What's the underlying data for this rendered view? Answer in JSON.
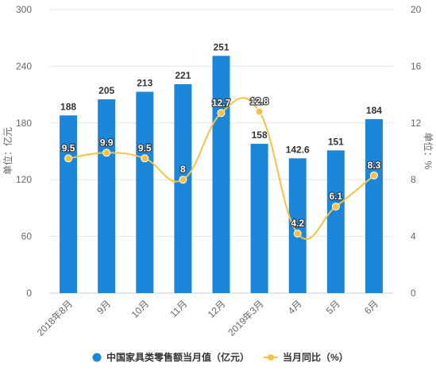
{
  "chart_data": {
    "type": "bar",
    "categories": [
      "2018年8月",
      "9月",
      "10月",
      "11月",
      "12月",
      "2019年3月",
      "4月",
      "5月",
      "6月"
    ],
    "series": [
      {
        "name": "中国家具类零售额当月值（亿元）",
        "type": "bar",
        "axis": "left",
        "values": [
          188,
          205,
          213,
          221,
          251,
          158,
          142.6,
          151,
          184
        ],
        "labels": [
          "188",
          "205",
          "213",
          "221",
          "251",
          "158",
          "142.6",
          "151",
          "184"
        ]
      },
      {
        "name": "当月同比（%）",
        "type": "line",
        "axis": "right",
        "values": [
          9.5,
          9.9,
          9.5,
          8,
          12.7,
          12.8,
          4.2,
          6.1,
          8.3
        ],
        "labels": [
          "9.5",
          "9.9",
          "9.5",
          "8",
          "12.7",
          "12.8",
          "4.2",
          "6.1",
          "8.3"
        ]
      }
    ],
    "ylabel_left": "单位：亿元",
    "ylabel_right": "单位：%",
    "ylim_left": [
      0,
      300
    ],
    "ylim_right": [
      0,
      20
    ],
    "yticks_left": [
      "0",
      "60",
      "120",
      "180",
      "240",
      "300"
    ],
    "yticks_right": [
      "0",
      "4",
      "8",
      "12",
      "16",
      "20"
    ],
    "legend_position": "bottom",
    "grid": true,
    "colors": {
      "bar": "#1c86d9",
      "line": "#f5c243",
      "grid": "#e6e6e6"
    }
  }
}
